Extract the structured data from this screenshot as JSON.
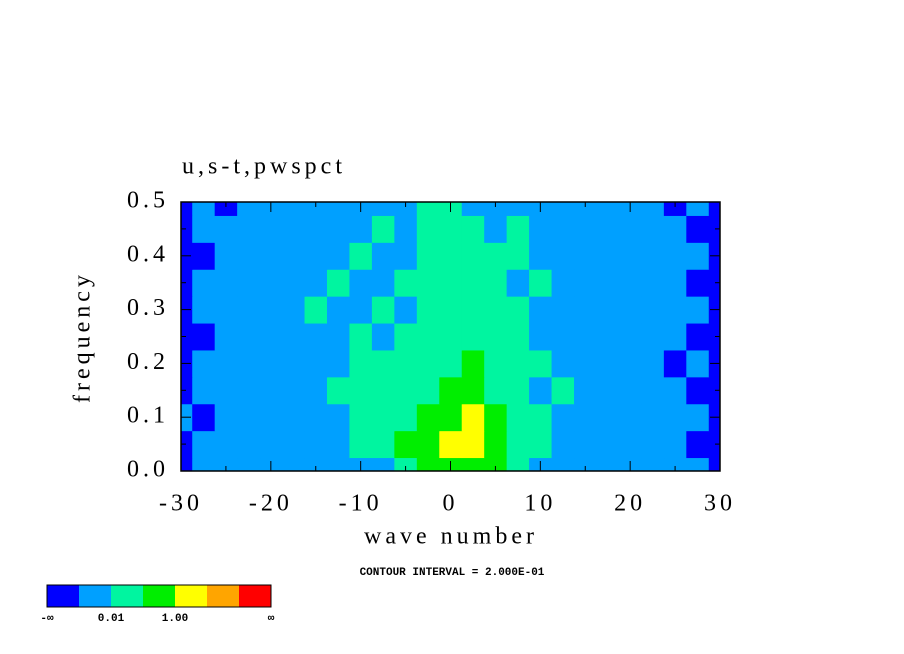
{
  "chart_data": {
    "type": "contour",
    "title": "u,s-t,pwspct",
    "xlabel": "wave number",
    "ylabel": "frequency",
    "note": "CONTOUR INTERVAL = 2.000E-01",
    "x": [
      -30,
      -27.5,
      -25,
      -22.5,
      -20,
      -17.5,
      -15,
      -12.5,
      -10,
      -7.5,
      -5,
      -2.5,
      0,
      2.5,
      5,
      7.5,
      10,
      12.5,
      15,
      17.5,
      20,
      22.5,
      25,
      27.5,
      30
    ],
    "y": [
      0,
      0.05,
      0.1,
      0.15,
      0.2,
      0.25,
      0.3,
      0.35,
      0.4,
      0.45,
      0.5
    ],
    "z": [
      [
        0,
        1,
        1,
        1,
        1,
        1,
        1,
        1,
        1,
        1,
        2,
        3,
        3,
        3,
        3,
        2,
        1,
        1,
        1,
        1,
        1,
        1,
        1,
        1,
        0
      ],
      [
        0,
        1,
        1,
        1,
        1,
        1,
        1,
        1,
        2,
        2,
        3,
        3,
        4,
        4,
        3,
        2,
        2,
        1,
        1,
        1,
        1,
        1,
        1,
        0,
        0
      ],
      [
        1,
        0,
        1,
        1,
        1,
        1,
        1,
        1,
        2,
        2,
        2,
        3,
        3,
        4,
        3,
        2,
        2,
        1,
        1,
        1,
        1,
        1,
        1,
        1,
        0
      ],
      [
        0,
        1,
        1,
        1,
        1,
        1,
        1,
        2,
        2,
        2,
        2,
        2,
        3,
        3,
        2,
        2,
        1,
        2,
        1,
        1,
        1,
        1,
        1,
        0,
        0
      ],
      [
        0,
        1,
        1,
        1,
        1,
        1,
        1,
        1,
        2,
        2,
        2,
        2,
        2,
        3,
        2,
        2,
        2,
        1,
        1,
        1,
        1,
        1,
        0,
        1,
        0
      ],
      [
        0,
        0,
        1,
        1,
        1,
        1,
        1,
        1,
        2,
        1,
        2,
        2,
        2,
        2,
        2,
        2,
        1,
        1,
        1,
        1,
        1,
        1,
        1,
        0,
        0
      ],
      [
        0,
        1,
        1,
        1,
        1,
        1,
        2,
        1,
        1,
        2,
        1,
        2,
        2,
        2,
        2,
        2,
        1,
        1,
        1,
        1,
        1,
        1,
        1,
        1,
        0
      ],
      [
        0,
        1,
        1,
        1,
        1,
        1,
        1,
        2,
        1,
        1,
        2,
        2,
        2,
        2,
        2,
        1,
        2,
        1,
        1,
        1,
        1,
        1,
        1,
        0,
        0
      ],
      [
        0,
        0,
        1,
        1,
        1,
        1,
        1,
        1,
        2,
        1,
        1,
        2,
        2,
        2,
        2,
        2,
        1,
        1,
        1,
        1,
        1,
        1,
        1,
        1,
        0
      ],
      [
        0,
        1,
        1,
        1,
        1,
        1,
        1,
        1,
        1,
        2,
        1,
        2,
        2,
        2,
        1,
        2,
        1,
        1,
        1,
        1,
        1,
        1,
        1,
        0,
        0
      ],
      [
        0,
        1,
        0,
        1,
        1,
        1,
        1,
        1,
        1,
        1,
        1,
        2,
        2,
        1,
        1,
        1,
        1,
        1,
        1,
        1,
        1,
        1,
        0,
        1,
        0
      ]
    ],
    "colors": [
      "#0000ff",
      "#00a0ff",
      "#00f5a0",
      "#00ee00",
      "#ffff00",
      "#ffa500",
      "#ff0000"
    ],
    "colorbar_labels": [
      {
        "value": 0,
        "label": "-∞"
      },
      {
        "value": 2,
        "label": "0.01"
      },
      {
        "value": 4,
        "label": "1.00"
      },
      {
        "value": 7,
        "label": "∞"
      }
    ],
    "xlim": [
      -30,
      30
    ],
    "xticks": [
      -30,
      -20,
      -10,
      0,
      10,
      20,
      30
    ],
    "xminorticks": [
      -25,
      -15,
      -5,
      5,
      15,
      25
    ],
    "ylim": [
      0,
      0.5
    ],
    "yticks": [
      {
        "value": 0,
        "label": "0.0"
      },
      0.1,
      0.2,
      0.3,
      0.4,
      0.5
    ],
    "yminorticks": [
      0.05,
      0.15,
      0.25,
      0.35,
      0.45
    ]
  }
}
